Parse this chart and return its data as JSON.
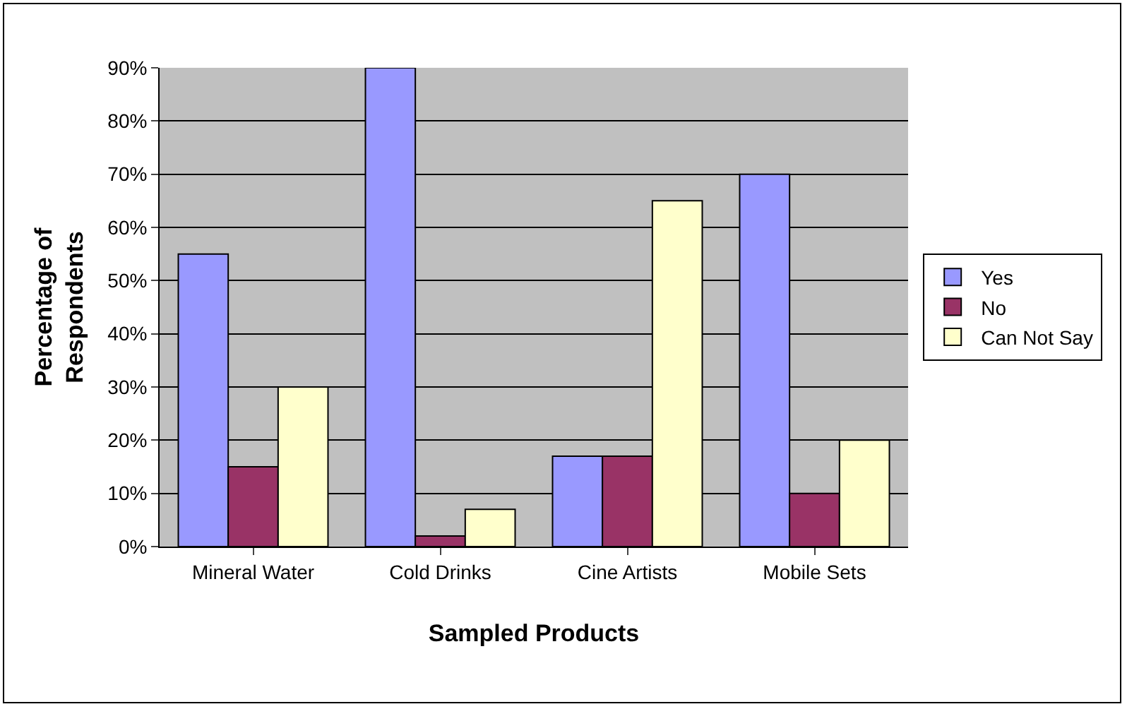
{
  "chart_data": {
    "type": "bar",
    "xlabel": "Sampled Products",
    "ylabel": "Percentage of Respondents",
    "categories": [
      "Mineral Water",
      "Cold Drinks",
      "Cine Artists",
      "Mobile Sets"
    ],
    "series": [
      {
        "name": "Yes",
        "color": "#9999ff",
        "values": [
          55,
          90,
          17,
          70
        ]
      },
      {
        "name": "No",
        "color": "#993366",
        "values": [
          15,
          2,
          17,
          10
        ]
      },
      {
        "name": "Can Not Say",
        "color": "#ffffcc",
        "values": [
          30,
          7,
          65,
          20
        ]
      }
    ],
    "ylim": [
      0,
      90
    ],
    "yticks": [
      {
        "value": 0,
        "label": "0%"
      },
      {
        "value": 10,
        "label": "10%"
      },
      {
        "value": 20,
        "label": "20%"
      },
      {
        "value": 30,
        "label": "30%"
      },
      {
        "value": 40,
        "label": "40%"
      },
      {
        "value": 50,
        "label": "50%"
      },
      {
        "value": 60,
        "label": "60%"
      },
      {
        "value": 70,
        "label": "70%"
      },
      {
        "value": 80,
        "label": "80%"
      },
      {
        "value": 90,
        "label": "90%"
      }
    ],
    "grid": "y",
    "legend": "right"
  }
}
